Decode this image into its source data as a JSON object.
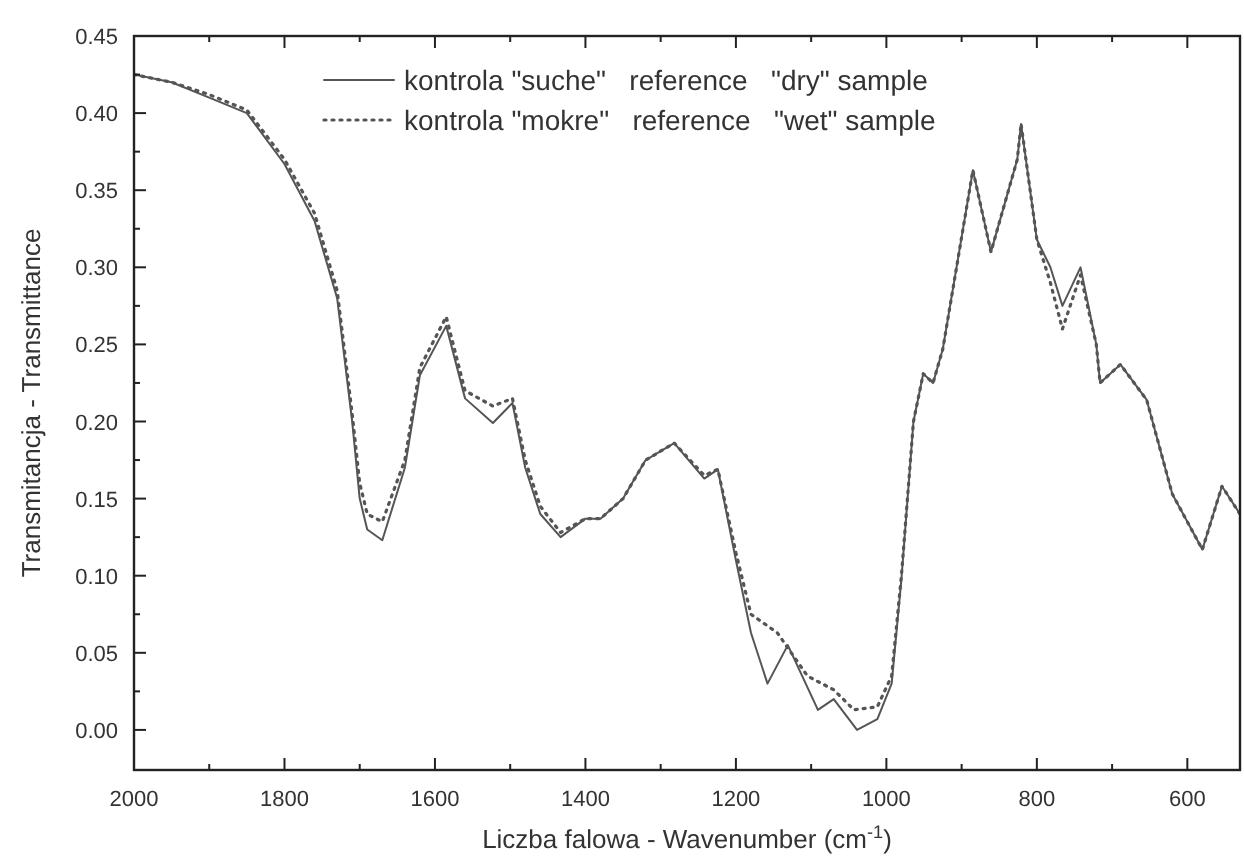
{
  "chart_data": {
    "type": "line",
    "xlabel": "Liczba falowa - Wavenumber (cm$^{-1}$)",
    "ylabel": "Transmitancja - Transmittance",
    "xlim": [
      2000,
      530
    ],
    "ylim": [
      -0.026,
      0.45
    ],
    "xticks": [
      2000,
      {
        "value": 1900,
        "label": null
      },
      1800,
      {
        "value": 1700,
        "label": null
      },
      1600,
      {
        "value": 1500,
        "label": null
      },
      1400,
      {
        "value": 1300,
        "label": null
      },
      1200,
      {
        "value": 1100,
        "label": null
      },
      1000,
      {
        "value": 900,
        "label": null
      },
      800,
      {
        "value": 700,
        "label": null
      },
      600
    ],
    "yticks": [
      {
        "value": 0,
        "label": "0.00"
      },
      {
        "value": 0.025,
        "label": null
      },
      {
        "value": 0.05,
        "label": "0.05"
      },
      {
        "value": 0.075,
        "label": null
      },
      {
        "value": 0.1,
        "label": "0.10"
      },
      {
        "value": 0.125,
        "label": null
      },
      {
        "value": 0.15,
        "label": "0.15"
      },
      {
        "value": 0.175,
        "label": null
      },
      {
        "value": 0.2,
        "label": "0.20"
      },
      {
        "value": 0.225,
        "label": null
      },
      {
        "value": 0.25,
        "label": "0.25"
      },
      {
        "value": 0.275,
        "label": null
      },
      {
        "value": 0.3,
        "label": "0.30"
      },
      {
        "value": 0.325,
        "label": null
      },
      {
        "value": 0.35,
        "label": "0.35"
      },
      {
        "value": 0.375,
        "label": null
      },
      {
        "value": 0.4,
        "label": "0.40"
      },
      {
        "value": 0.425,
        "label": null
      },
      {
        "value": 0.45,
        "label": "0.45"
      }
    ],
    "grid": false,
    "legend": "top",
    "series": [
      {
        "name": "kontrola \"suche\"   reference   \"dry\" sample",
        "color": "#555555",
        "line_style": "solid",
        "x": [
          2000,
          1950,
          1900,
          1850,
          1800,
          1760,
          1730,
          1710,
          1700,
          1690,
          1670,
          1640,
          1620,
          1585,
          1560,
          1523,
          1497,
          1480,
          1460,
          1433,
          1400,
          1380,
          1350,
          1320,
          1282,
          1242,
          1224,
          1200,
          1180,
          1158,
          1131,
          1091,
          1070,
          1039,
          1012,
          993,
          980,
          964,
          951,
          938,
          925,
          885,
          861,
          826,
          821,
          800,
          782,
          766,
          742,
          721,
          716,
          689,
          654,
          620,
          580,
          554,
          530
        ],
        "values": [
          0.425,
          0.42,
          0.41,
          0.4,
          0.367,
          0.33,
          0.28,
          0.2,
          0.15,
          0.13,
          0.123,
          0.17,
          0.23,
          0.262,
          0.215,
          0.199,
          0.212,
          0.17,
          0.14,
          0.125,
          0.137,
          0.137,
          0.15,
          0.175,
          0.186,
          0.163,
          0.169,
          0.11,
          0.063,
          0.03,
          0.055,
          0.013,
          0.02,
          0.0,
          0.007,
          0.03,
          0.098,
          0.2,
          0.231,
          0.225,
          0.247,
          0.363,
          0.31,
          0.37,
          0.393,
          0.318,
          0.3,
          0.275,
          0.3,
          0.25,
          0.225,
          0.237,
          0.214,
          0.153,
          0.117,
          0.158,
          0.14
        ]
      },
      {
        "name": "kontrola \"mokre\"   reference   \"wet\" sample",
        "color": "#555555",
        "line_style": "dotted",
        "x": [
          2000,
          1950,
          1900,
          1850,
          1800,
          1760,
          1730,
          1710,
          1700,
          1690,
          1670,
          1640,
          1620,
          1585,
          1560,
          1523,
          1497,
          1480,
          1460,
          1433,
          1400,
          1380,
          1350,
          1320,
          1282,
          1242,
          1224,
          1200,
          1180,
          1145,
          1105,
          1070,
          1043,
          1012,
          993,
          980,
          964,
          951,
          938,
          925,
          885,
          861,
          826,
          821,
          800,
          782,
          766,
          742,
          721,
          716,
          689,
          654,
          620,
          580,
          554,
          530
        ],
        "values": [
          0.425,
          0.42,
          0.412,
          0.402,
          0.37,
          0.335,
          0.285,
          0.205,
          0.16,
          0.14,
          0.135,
          0.175,
          0.235,
          0.268,
          0.22,
          0.21,
          0.215,
          0.175,
          0.145,
          0.128,
          0.137,
          0.137,
          0.15,
          0.175,
          0.186,
          0.165,
          0.169,
          0.115,
          0.075,
          0.063,
          0.035,
          0.026,
          0.013,
          0.015,
          0.035,
          0.1,
          0.2,
          0.231,
          0.225,
          0.247,
          0.363,
          0.31,
          0.37,
          0.393,
          0.318,
          0.29,
          0.26,
          0.295,
          0.25,
          0.225,
          0.237,
          0.214,
          0.153,
          0.117,
          0.158,
          0.14
        ]
      }
    ]
  }
}
